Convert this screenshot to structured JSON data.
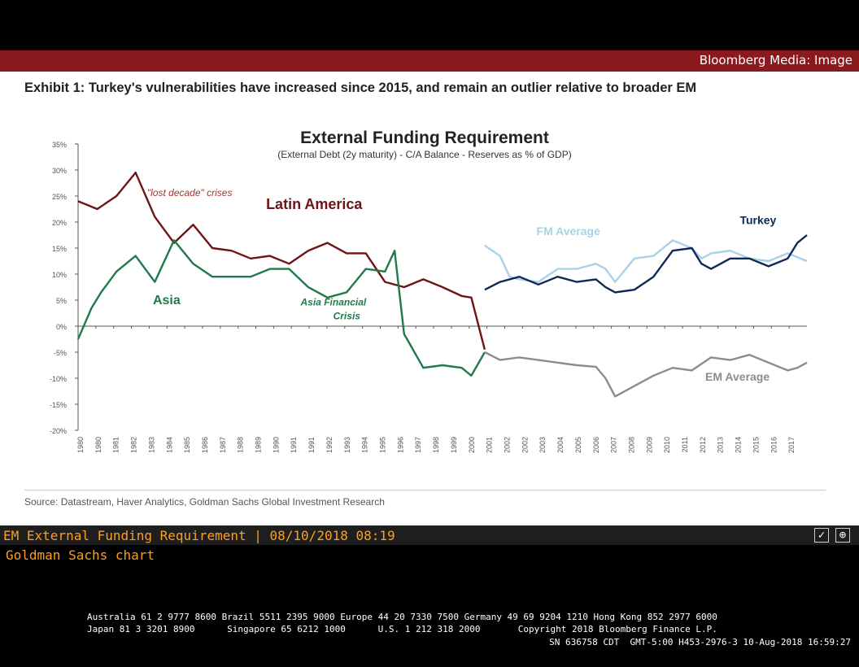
{
  "window": {
    "title": "Bloomberg Media: Image"
  },
  "exhibit_title": "Exhibit 1: Turkey's vulnerabilities have increased since 2015, and remain an outlier relative to broader EM",
  "source": "Source: Datastream, Haver Analytics, Goldman Sachs Global Investment Research",
  "caption": {
    "title": "EM External Funding Requirement | 08/10/2018 08:19",
    "subtitle": "Goldman Sachs chart"
  },
  "icons": [
    "check-icon",
    "share-icon"
  ],
  "footer": {
    "line1": "Australia 61 2 9777 8600 Brazil 5511 2395 9000 Europe 44 20 7330 7500 Germany 49 69 9204 1210 Hong Kong 852 2977 6000",
    "line2": "Japan 81 3 3201 8900      Singapore 65 6212 1000      U.S. 1 212 318 2000       Copyright 2018 Bloomberg Finance L.P.",
    "line3": "SN 636758 CDT  GMT-5:00 H453-2976-3 10-Aug-2018 16:59:27"
  },
  "chart_data": {
    "type": "line",
    "title": "External Funding Requirement",
    "subtitle": "(External Debt (2y maturity) - C/A Balance - Reserves as % of GDP)",
    "x_range": [
      1980,
      2018
    ],
    "ylim": [
      -20,
      35
    ],
    "yticks": [
      -20,
      -15,
      -10,
      -5,
      0,
      5,
      10,
      15,
      20,
      25,
      30,
      35
    ],
    "ytick_labels": [
      "-20%",
      "-15%",
      "-10%",
      "-5%",
      "0%",
      "5%",
      "10%",
      "15%",
      "20%",
      "25%",
      "30%",
      "35%"
    ],
    "xtick_labels": [
      "1980",
      "1980",
      "1981",
      "1982",
      "1983",
      "1984",
      "1985",
      "1986",
      "1987",
      "1988",
      "1989",
      "1990",
      "1991",
      "1991",
      "1992",
      "1993",
      "1994",
      "1995",
      "1996",
      "1997",
      "1998",
      "1999",
      "2000",
      "2001",
      "2002",
      "2002",
      "2003",
      "2004",
      "2005",
      "2006",
      "2007",
      "2008",
      "2009",
      "2010",
      "2011",
      "2012",
      "2013",
      "2014",
      "2015",
      "2016",
      "2017"
    ],
    "colors": {
      "latam": "#6e1414",
      "asia": "#1e7a4a",
      "fm": "#a9d1ea",
      "turkey": "#0d2a55",
      "em": "#8c8c8c",
      "axis": "#555555"
    },
    "annotations": [
      {
        "text": "\"lost decade\" crises",
        "x": 1983.6,
        "y": 25,
        "color": "#a83232",
        "style": "italic",
        "size": 12
      },
      {
        "text": "Latin America",
        "x": 1989.8,
        "y": 22.5,
        "color": "#6e1414",
        "weight": "bold",
        "size": 18
      },
      {
        "text": "Asia",
        "x": 1983.9,
        "y": 4.2,
        "color": "#1e7a4a",
        "weight": "bold",
        "size": 16
      },
      {
        "text": "Asia Financial",
        "x": 1991.6,
        "y": 4,
        "color": "#1e7a4a",
        "style": "italic",
        "weight": "bold",
        "size": 12
      },
      {
        "text": "Crisis",
        "x": 1993.3,
        "y": 1.3,
        "color": "#1e7a4a",
        "style": "italic",
        "weight": "bold",
        "size": 12
      },
      {
        "text": "FM Average",
        "x": 2003.9,
        "y": 17.5,
        "color": "#a9d1ea",
        "weight": "bold",
        "size": 14
      },
      {
        "text": "Turkey",
        "x": 2014.5,
        "y": 19.6,
        "color": "#0d2a55",
        "weight": "bold",
        "size": 14
      },
      {
        "text": "EM Average",
        "x": 2012.7,
        "y": -10.5,
        "color": "#8c8c8c",
        "weight": "bold",
        "size": 14
      }
    ],
    "series": [
      {
        "name": "Latin America",
        "key": "latam",
        "x": [
          1980,
          1981,
          1982,
          1983,
          1984,
          1985,
          1986,
          1987,
          1988,
          1989,
          1990,
          1991,
          1992,
          1993,
          1994,
          1995,
          1996,
          1997,
          1998,
          1999,
          2000,
          2000.5,
          2001.2
        ],
        "y": [
          24,
          22.5,
          25,
          29.5,
          21,
          16,
          19.5,
          15,
          14.5,
          13,
          13.5,
          12,
          14.5,
          16,
          14,
          14,
          8.5,
          7.5,
          9,
          7.5,
          5.8,
          5.5,
          -4.5
        ]
      },
      {
        "name": "Asia",
        "key": "asia",
        "x": [
          1980,
          1980.7,
          1981.2,
          1982,
          1983,
          1984,
          1985,
          1986,
          1987,
          1988,
          1989,
          1990,
          1991,
          1992,
          1993,
          1994,
          1995,
          1996,
          1996.5,
          1997,
          1998,
          1999,
          2000,
          2000.5,
          2001.2
        ],
        "y": [
          -2.5,
          3.5,
          6.5,
          10.5,
          13.5,
          8.5,
          16.5,
          12,
          9.5,
          9.5,
          9.5,
          11,
          11,
          7.5,
          5.5,
          6.5,
          11,
          10.5,
          14.5,
          -1.5,
          -8,
          -7.5,
          -8,
          -9.5,
          -5
        ]
      },
      {
        "name": "EM Average",
        "key": "em",
        "x": [
          2001.2,
          2002,
          2003,
          2004,
          2005,
          2006,
          2007,
          2007.5,
          2008,
          2009,
          2010,
          2011,
          2012,
          2013,
          2014,
          2015,
          2016,
          2017,
          2017.5,
          2018
        ],
        "y": [
          -5,
          -6.5,
          -6,
          -6.5,
          -7,
          -7.5,
          -7.8,
          -10,
          -13.5,
          -11.5,
          -9.5,
          -8,
          -8.5,
          -6,
          -6.5,
          -5.5,
          -7,
          -8.5,
          -8,
          -7
        ]
      },
      {
        "name": "FM Average",
        "key": "fm",
        "x": [
          2001.2,
          2002,
          2002.5,
          2003,
          2004,
          2005,
          2006,
          2007,
          2007.5,
          2008,
          2009,
          2010,
          2011,
          2012,
          2012.5,
          2013,
          2014,
          2015,
          2016,
          2017,
          2018
        ],
        "y": [
          15.5,
          13.5,
          9.5,
          9,
          8.5,
          11,
          11,
          12,
          11,
          8.5,
          13,
          13.5,
          16.5,
          15,
          13,
          14,
          14.5,
          13,
          12.5,
          14,
          12.5
        ]
      },
      {
        "name": "Turkey",
        "key": "turkey",
        "x": [
          2001.2,
          2002,
          2003,
          2004,
          2005,
          2006,
          2007,
          2007.5,
          2008,
          2009,
          2010,
          2011,
          2012,
          2012.5,
          2013,
          2014,
          2015,
          2016,
          2017,
          2017.5,
          2018
        ],
        "y": [
          7,
          8.5,
          9.5,
          8,
          9.5,
          8.5,
          9,
          7.5,
          6.5,
          7,
          9.5,
          14.5,
          15,
          12,
          11,
          13,
          13,
          11.5,
          13,
          16,
          17.5
        ]
      }
    ]
  }
}
